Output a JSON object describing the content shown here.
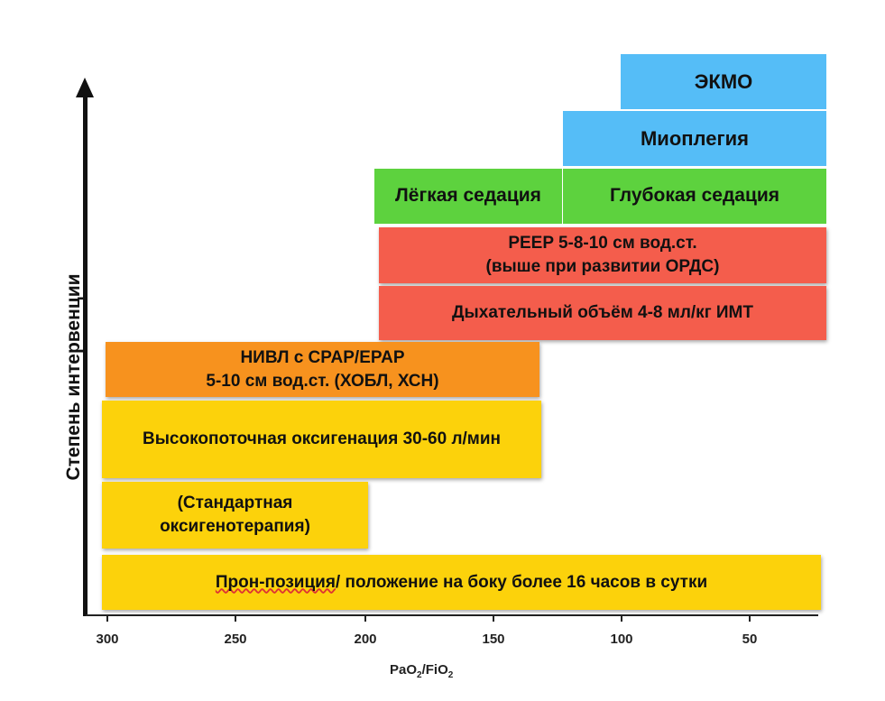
{
  "ylabel": "Степень интервенции",
  "xlabel": {
    "main": "PaO",
    "sub1": "2",
    "mid": "/FiO",
    "sub2": "2"
  },
  "ticks": [
    "300",
    "250",
    "200",
    "150",
    "100",
    "50"
  ],
  "bars": {
    "ecmo": "ЭКМО",
    "myoplegia": "Миоплегия",
    "light_sedation": "Лёгкая седация",
    "deep_sedation": "Глубокая седация",
    "peep": "PEEP 5-8-10 см вод.ст.\n(выше при развитии ОРДС)",
    "tidal_volume": "Дыхательный объём 4-8 мл/кг ИМТ",
    "niv": "НИВЛ с CPAP/EPAP\n5-10 см вод.ст. (ХОБЛ, ХСН)",
    "hfo": "Высокопоточная оксигенация 30-60 л/мин",
    "standard_o2": "(Стандартная\nоксигенотерапия)",
    "prone_prefix": "Прон-позиция",
    "prone_rest": "/ положение на боку более 16 часов в сутки"
  },
  "colors": {
    "blue": "#55bdf7",
    "green": "#5dd23e",
    "red": "#f45d4c",
    "orange": "#f7921e",
    "yellow": "#fcd20b"
  }
}
